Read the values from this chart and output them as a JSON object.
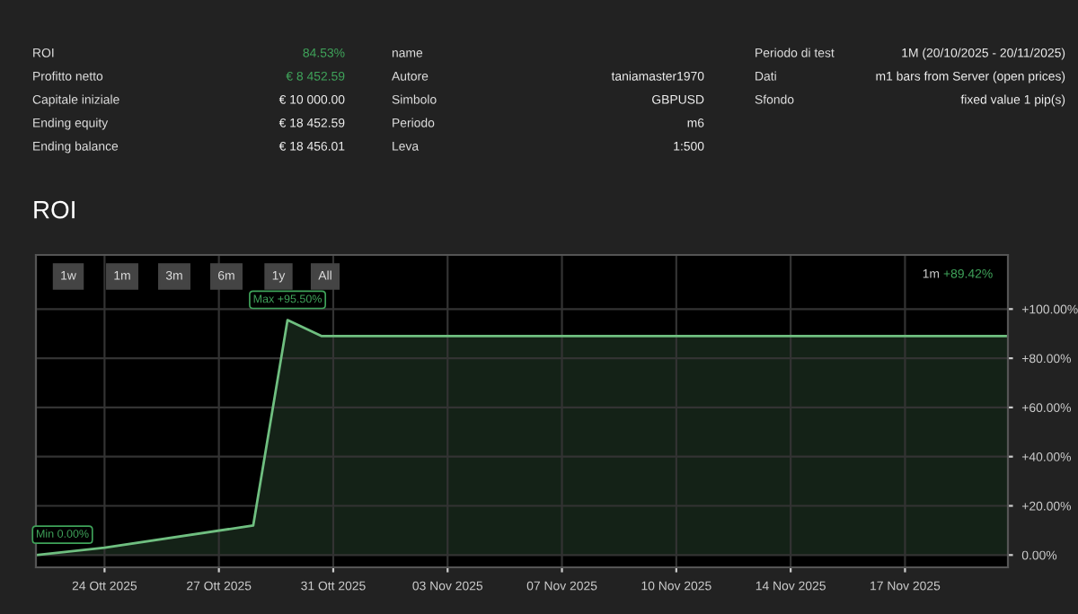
{
  "chart_data": {
    "type": "area",
    "title": "ROI",
    "categories": [
      null,
      null,
      null,
      null,
      null,
      null,
      "24 Ott 2025",
      null,
      null,
      null,
      null,
      null,
      null,
      null,
      null,
      null,
      "27 Ott 2025",
      null,
      null,
      null,
      null,
      null,
      null,
      null,
      null,
      null,
      "31 Ott 2025",
      null,
      null,
      null,
      null,
      null,
      null,
      null,
      null,
      null,
      "03 Nov 2025",
      null,
      null,
      null,
      null,
      null,
      null,
      null,
      null,
      null,
      "07 Nov 2025",
      null,
      null,
      null,
      null,
      null,
      null,
      null,
      null,
      null,
      "10 Nov 2025",
      null,
      null,
      null,
      null,
      null,
      null,
      null,
      null,
      null,
      "14 Nov 2025",
      null,
      null,
      null,
      null,
      null,
      null,
      null,
      null,
      null,
      "17 Nov 2025",
      null,
      null,
      null,
      null,
      null,
      null,
      null,
      null,
      null
    ],
    "series": [
      {
        "color": "#6fbf80",
        "values": [
          0,
          null,
          null,
          null,
          null,
          null,
          3,
          null,
          null,
          null,
          null,
          null,
          null,
          null,
          null,
          null,
          null,
          null,
          null,
          12,
          null,
          null,
          95.5,
          null,
          null,
          89,
          null,
          null,
          null,
          null,
          null,
          null,
          null,
          null,
          null,
          null,
          null,
          null,
          null,
          null,
          null,
          null,
          null,
          null,
          null,
          null,
          null,
          null,
          null,
          null,
          null,
          null,
          null,
          null,
          null,
          null,
          null,
          null,
          null,
          null,
          null,
          null,
          null,
          null,
          null,
          null,
          null,
          null,
          null,
          null,
          null,
          null,
          null,
          null,
          null,
          null,
          null,
          null,
          null,
          null,
          null,
          null,
          null,
          null,
          null,
          89
        ]
      }
    ],
    "ylim": [
      -5,
      122
    ],
    "yticks": [
      {
        "value": 0,
        "label": "0.00%"
      },
      {
        "value": 20,
        "label": "+20.00%"
      },
      {
        "value": 40,
        "label": "+40.00%"
      },
      {
        "value": 60,
        "label": "+60.00%"
      },
      {
        "value": 80,
        "label": "+80.00%"
      },
      {
        "value": 100,
        "label": "+100.00%"
      }
    ],
    "grid": true,
    "legend": false,
    "marker": "none",
    "line_style": "solid",
    "annotations": [
      "ROI",
      "Profitto netto",
      "Capitale iniziale",
      "Ending equity",
      "Ending balance",
      "84.53%",
      "€ 8 452.59",
      "€ 10 000.00",
      "€ 18 452.59",
      "€ 18 456.01",
      "name",
      "Autore",
      "Simbolo",
      "Periodo",
      "Leva",
      "taniamaster1970",
      "GBPUSD",
      "m6",
      "1:500",
      "Periodo di test",
      "Dati",
      "Sfondo",
      "1M (20/10/2025 - 20/11/2025)",
      "m1 bars from Server (open prices)",
      "fixed value 1 pip(s)",
      "1w",
      "1m",
      "3m",
      "6m",
      "1y",
      "All",
      "1m",
      "+89.42%",
      {
        "text": "Max +95.50%",
        "y": 95.5
      },
      {
        "text": "Min 0.00%",
        "y": 0
      }
    ]
  }
}
